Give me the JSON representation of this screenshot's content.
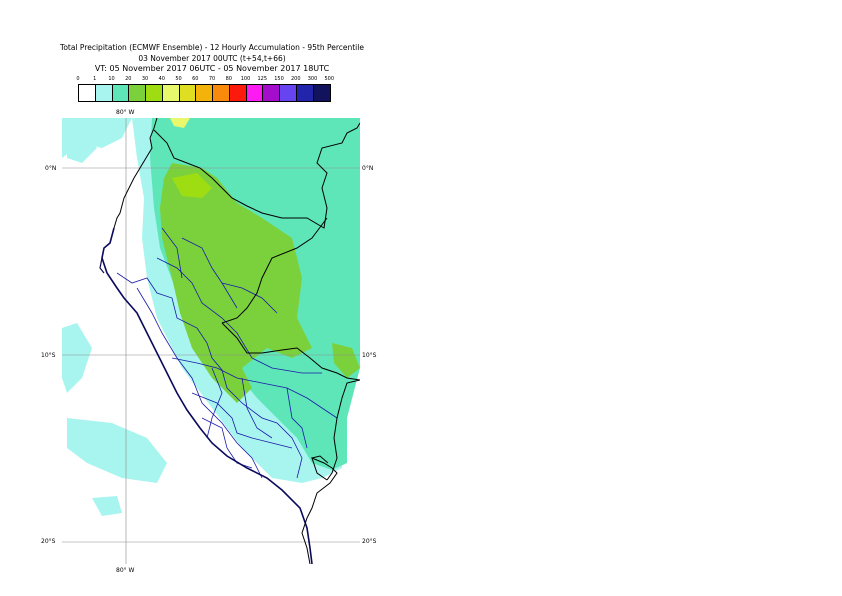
{
  "title": {
    "line1": "Total Precipitation (ECMWF Ensemble) - 12 Hourly Accumulation - 95th Percentile",
    "line2": "03 November 2017 00UTC (t+54,t+66)",
    "line3": "VT: 05 November 2017 06UTC - 05 November 2017 18UTC"
  },
  "legend": {
    "labels": [
      "0",
      "1",
      "10",
      "20",
      "30",
      "40",
      "50",
      "60",
      "70",
      "80",
      "100",
      "125",
      "150",
      "200",
      "300",
      "500"
    ],
    "colors": [
      "#ffffff",
      "#a8f5f0",
      "#5fe6b8",
      "#7bd13c",
      "#9edd12",
      "#e8f86c",
      "#e0de22",
      "#f3b30a",
      "#fa8a0c",
      "#fb1a0c",
      "#fc1cf3",
      "#a50dcd",
      "#6644f0",
      "#2224ac",
      "#11135c"
    ]
  },
  "axes": {
    "lon_top": "80° W",
    "lon_bottom": "80° W",
    "lat_left": [
      "0°N",
      "10°S",
      "20°S"
    ],
    "lat_right": [
      "0°N",
      "10°S",
      "20°S"
    ]
  }
}
